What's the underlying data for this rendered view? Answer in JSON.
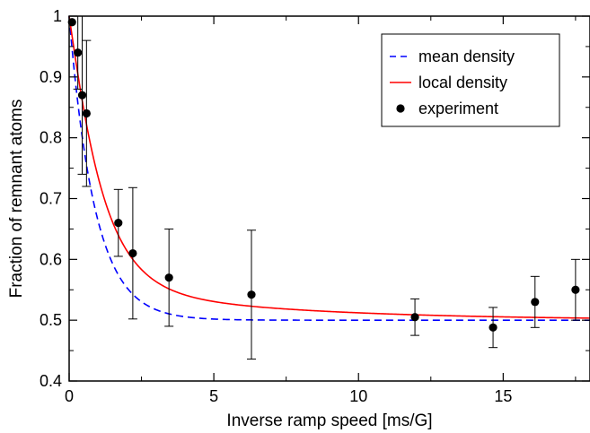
{
  "chart_data": {
    "type": "scatter",
    "xlabel": "Inverse ramp speed [ms/G]",
    "ylabel": "Fraction of remnant atoms",
    "xlim": [
      0,
      18
    ],
    "ylim": [
      0.4,
      1.0
    ],
    "x_ticks": [
      {
        "value": 0,
        "label": "0"
      },
      {
        "value": 5,
        "label": "5"
      },
      {
        "value": 10,
        "label": "10"
      },
      {
        "value": 15,
        "label": "15"
      }
    ],
    "y_ticks": [
      {
        "value": 0.4,
        "label": "0.4"
      },
      {
        "value": 0.5,
        "label": "0.5"
      },
      {
        "value": 0.6,
        "label": "0.6"
      },
      {
        "value": 0.7,
        "label": "0.7"
      },
      {
        "value": 0.8,
        "label": "0.8"
      },
      {
        "value": 0.9,
        "label": "0.9"
      },
      {
        "value": 1.0,
        "label": "1"
      }
    ],
    "grid": false,
    "legend_position": "top-right",
    "series": [
      {
        "name": "mean density",
        "kind": "line",
        "style": "dashed",
        "color": "#0000ff",
        "function": {
          "asymptote": 0.5,
          "amplitude": 0.5,
          "rate": 1.12
        }
      },
      {
        "name": "local density",
        "kind": "line",
        "style": "solid",
        "color": "#ff0000",
        "function": {
          "asymptote": 0.5,
          "amplitude": 0.5,
          "rate": 0.98,
          "tail_amplitude": 0.06,
          "tail_rate": 0.16
        }
      },
      {
        "name": "experiment",
        "kind": "points",
        "color": "#000000",
        "points": [
          {
            "x": 0.1,
            "y": 0.99,
            "err": 0.0
          },
          {
            "x": 0.3,
            "y": 0.94,
            "err": 0.06
          },
          {
            "x": 0.45,
            "y": 0.87,
            "err": 0.13
          },
          {
            "x": 0.6,
            "y": 0.84,
            "err": 0.12
          },
          {
            "x": 1.7,
            "y": 0.66,
            "err": 0.055
          },
          {
            "x": 2.2,
            "y": 0.61,
            "err": 0.108
          },
          {
            "x": 3.45,
            "y": 0.57,
            "err": 0.08
          },
          {
            "x": 6.3,
            "y": 0.542,
            "err": 0.106
          },
          {
            "x": 11.95,
            "y": 0.505,
            "err": 0.03
          },
          {
            "x": 14.65,
            "y": 0.488,
            "err": 0.033
          },
          {
            "x": 16.1,
            "y": 0.53,
            "err": 0.042
          },
          {
            "x": 17.5,
            "y": 0.55,
            "err": 0.05
          }
        ]
      }
    ]
  }
}
